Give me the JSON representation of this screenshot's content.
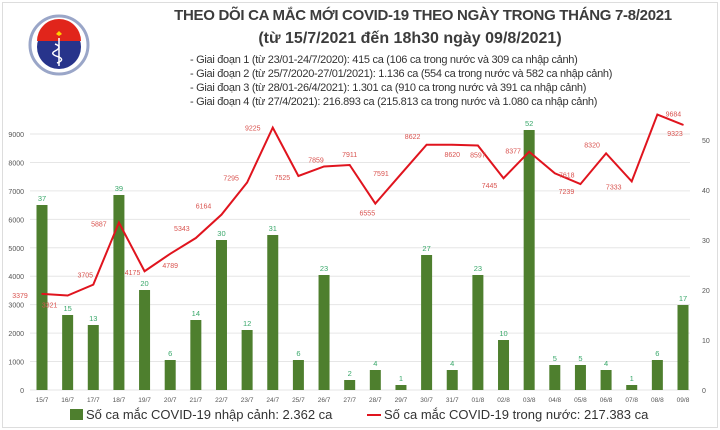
{
  "header": {
    "logo_text_top": "BỘ Y TẾ",
    "logo_text_bottom": "MINISTRY OF HEALTH",
    "title": "THEO DÕI CA MẮC MỚI COVID-19 THEO NGÀY TRONG THÁNG 7-8/2021",
    "subtitle": "(từ 15/7/2021 đến 18h30 ngày 09/8/2021)",
    "phases": [
      "- Giai đoạn 1 (từ 23/01-24/7/2020): 415 ca (106 ca trong nước và 309 ca nhập cảnh)",
      "- Giai đoạn 2 (từ 25/7/2020-27/01/2021): 1.136 ca (554 ca trong nước và 582 ca nhập cảnh)",
      "- Giai đoạn 3 (từ 28/01-26/4/2021): 1.301 ca (910 ca trong nước và 391 ca nhập cảnh)",
      "- Giai đoạn 4 (từ 27/4/2021): 216.893 ca (215.813 ca trong nước và 1.080 ca nhập cảnh)"
    ]
  },
  "chart_data": {
    "type": "bar+line",
    "categories": [
      "15/7",
      "16/7",
      "17/7",
      "18/7",
      "19/7",
      "20/7",
      "21/7",
      "22/7",
      "23/7",
      "24/7",
      "25/7",
      "26/7",
      "27/7",
      "28/7",
      "29/7",
      "30/7",
      "31/7",
      "01/8",
      "02/8",
      "03/8",
      "04/8",
      "05/8",
      "06/8",
      "07/8",
      "08/8",
      "09/8"
    ],
    "series": [
      {
        "name": "Số ca mắc COVID-19 nhập cảnh: 2.362 ca",
        "type": "bar",
        "axis": "right",
        "color": "#4e7f2e",
        "label_color": "#3aa86b",
        "values": [
          37,
          15,
          13,
          39,
          20,
          6,
          14,
          30,
          12,
          31,
          6,
          23,
          2,
          4,
          1,
          27,
          4,
          23,
          10,
          52,
          5,
          5,
          4,
          1,
          6,
          17
        ]
      },
      {
        "name": "Số ca mắc COVID-19 trong nước: 217.383 ca",
        "type": "line",
        "axis": "left",
        "color": "#e0141e",
        "label_color": "#d9534f",
        "values": [
          3379,
          3321,
          3705,
          5887,
          4175,
          4789,
          5343,
          6164,
          7295,
          9225,
          7525,
          7859,
          7911,
          6555,
          7591,
          8622,
          8620,
          8597,
          7445,
          8377,
          7618,
          7239,
          8320,
          7333,
          9684,
          9323
        ]
      }
    ],
    "left_axis": {
      "ticks": [
        0,
        1000,
        2000,
        3000,
        4000,
        5000,
        6000,
        7000,
        8000,
        9000
      ],
      "ylim": [
        0,
        9000
      ]
    },
    "right_axis": {
      "ticks": [
        0,
        10,
        20,
        30,
        40,
        50
      ],
      "ylim": [
        0,
        50
      ]
    },
    "grid": true,
    "legend": "bottom"
  }
}
